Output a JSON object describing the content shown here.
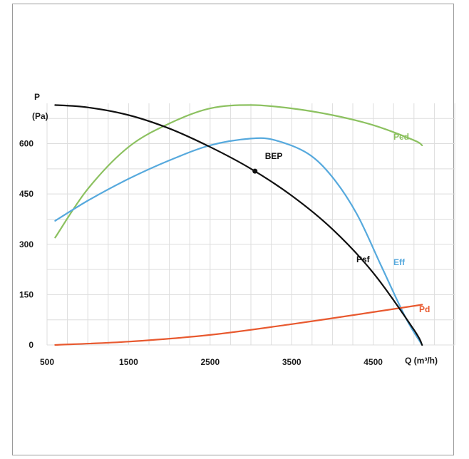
{
  "chart_data": {
    "type": "line",
    "title": "",
    "ylabel_line1": "P",
    "ylabel_line2": "(Pa)",
    "xlabel": "Q (m³/h)",
    "xlim": [
      500,
      5500
    ],
    "ylim": [
      0,
      720
    ],
    "x_ticks": [
      500,
      1500,
      2500,
      3500,
      4500
    ],
    "y_ticks": [
      0,
      150,
      300,
      450,
      600
    ],
    "grid": true,
    "series": [
      {
        "name": "Psf",
        "color": "#111111",
        "x": [
          600,
          1000,
          1500,
          2000,
          2500,
          3000,
          3500,
          4000,
          4500,
          5000,
          5100
        ],
        "y": [
          715,
          708,
          685,
          645,
          590,
          525,
          445,
          345,
          215,
          45,
          0
        ]
      },
      {
        "name": "Ped",
        "color": "#8cc160",
        "x": [
          600,
          1000,
          1500,
          2000,
          2500,
          3000,
          3500,
          4000,
          4500,
          5000,
          5100
        ],
        "y": [
          320,
          465,
          590,
          660,
          705,
          715,
          705,
          685,
          655,
          610,
          595
        ]
      },
      {
        "name": "Eff",
        "color": "#56a9dd",
        "x": [
          600,
          1000,
          1500,
          2000,
          2500,
          3000,
          3300,
          3700,
          4000,
          4300,
          4600,
          4900,
          5100
        ],
        "y": [
          370,
          430,
          495,
          550,
          595,
          615,
          610,
          570,
          500,
          390,
          235,
          80,
          0
        ]
      },
      {
        "name": "Pd",
        "color": "#e8592f",
        "x": [
          600,
          1500,
          2500,
          3500,
          4500,
          5100
        ],
        "y": [
          0,
          10,
          30,
          62,
          98,
          120
        ]
      }
    ],
    "annotations": [
      {
        "text": "BEP",
        "x": 3050,
        "y": 518
      }
    ]
  }
}
